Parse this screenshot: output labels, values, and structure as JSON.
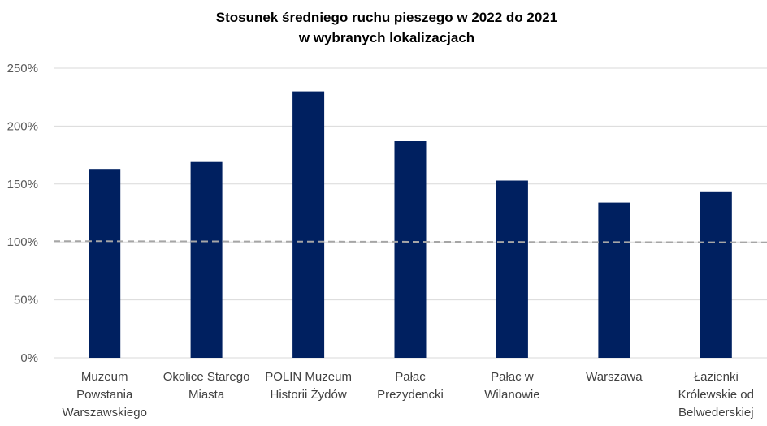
{
  "chart_data": {
    "type": "bar",
    "title_lines": [
      "Stosunek średniego ruchu pieszego w 2022 do 2021",
      "w wybranych lokalizacjach"
    ],
    "categories": [
      [
        "Muzeum",
        "Powstania",
        "Warszawskiego"
      ],
      [
        "Okolice Starego",
        "Miasta"
      ],
      [
        "POLIN Muzeum",
        "Historii Żydów"
      ],
      [
        "Pałac",
        "Prezydencki"
      ],
      [
        "Pałac w",
        "Wilanowie"
      ],
      [
        "Warszawa"
      ],
      [
        "Łazienki",
        "Królewskie od",
        "Belwederskiej"
      ]
    ],
    "values": [
      1.63,
      1.69,
      2.3,
      1.87,
      1.53,
      1.34,
      1.43
    ],
    "ylim": [
      0,
      2.5
    ],
    "yticks": [
      0,
      0.5,
      1.0,
      1.5,
      2.0,
      2.5
    ],
    "ytick_labels": [
      "0%",
      "50%",
      "100%",
      "150%",
      "200%",
      "250%"
    ],
    "reference_line": 1.0,
    "grid": true,
    "bar_color": "#002060",
    "reference_line_color": "#A6A6A6",
    "grid_color": "#D9D9D9"
  }
}
